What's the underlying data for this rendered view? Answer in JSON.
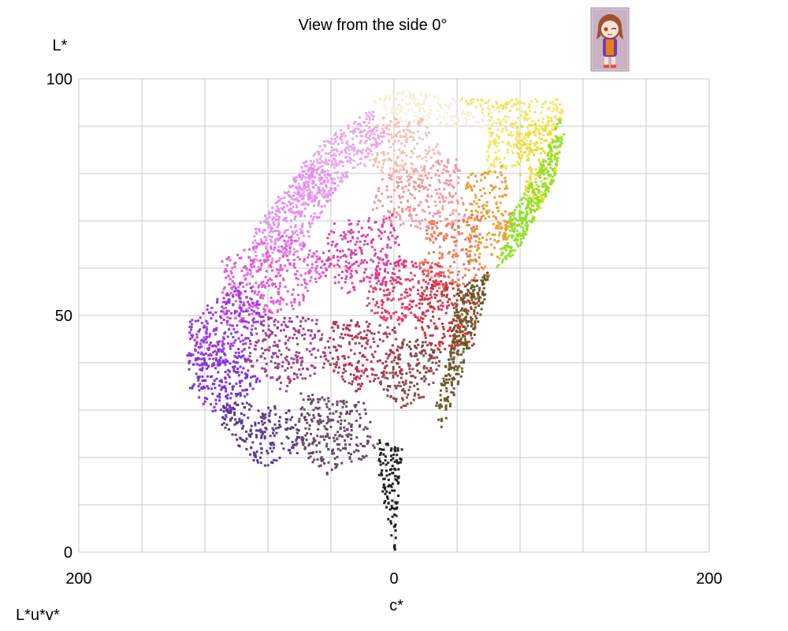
{
  "chart_data": {
    "type": "scatter",
    "title": "View from the side 0°",
    "xlabel": "c*",
    "ylabel": "L*",
    "colorspace_label": "L*u*v*",
    "xlim": [
      -200,
      200
    ],
    "ylim": [
      0,
      100
    ],
    "x_ticks": [
      {
        "value": -200,
        "label": "200"
      },
      {
        "value": 0,
        "label": "0"
      },
      {
        "value": 200,
        "label": "200"
      }
    ],
    "y_ticks": [
      {
        "value": 0,
        "label": "0"
      },
      {
        "value": 50,
        "label": "50"
      },
      {
        "value": 100,
        "label": "100"
      }
    ],
    "grid": true,
    "grid_x_step": 40,
    "grid_y_step": 10,
    "regions": [
      {
        "color": "#f4f0d8",
        "points": [
          [
            0,
            98
          ],
          [
            40,
            96
          ],
          [
            70,
            94
          ],
          [
            60,
            90
          ],
          [
            20,
            90
          ],
          [
            -10,
            92
          ],
          [
            -15,
            96
          ]
        ]
      },
      {
        "color": "#f3e66a",
        "points": [
          [
            40,
            96
          ],
          [
            105,
            96
          ],
          [
            108,
            92
          ],
          [
            80,
            82
          ],
          [
            55,
            80
          ],
          [
            60,
            92
          ]
        ]
      },
      {
        "color": "#ecdc3a",
        "points": [
          [
            75,
            90
          ],
          [
            105,
            92
          ],
          [
            102,
            80
          ],
          [
            88,
            70
          ],
          [
            80,
            78
          ]
        ]
      },
      {
        "color": "#94df2c",
        "points": [
          [
            104,
            92
          ],
          [
            108,
            90
          ],
          [
            100,
            78
          ],
          [
            78,
            64
          ],
          [
            64,
            60
          ],
          [
            70,
            70
          ],
          [
            90,
            80
          ]
        ]
      },
      {
        "color": "#f2c0b8",
        "points": [
          [
            -10,
            92
          ],
          [
            20,
            92
          ],
          [
            30,
            84
          ],
          [
            10,
            78
          ],
          [
            -20,
            82
          ]
        ]
      },
      {
        "color": "#e8a8e8",
        "points": [
          [
            -50,
            86
          ],
          [
            -15,
            94
          ],
          [
            -5,
            88
          ],
          [
            -40,
            76
          ],
          [
            -70,
            72
          ]
        ]
      },
      {
        "color": "#e58ff0",
        "points": [
          [
            -90,
            68
          ],
          [
            -55,
            84
          ],
          [
            -35,
            78
          ],
          [
            -60,
            64
          ],
          [
            -95,
            58
          ]
        ]
      },
      {
        "color": "#ef9aa0",
        "points": [
          [
            -10,
            80
          ],
          [
            40,
            84
          ],
          [
            45,
            70
          ],
          [
            10,
            68
          ],
          [
            -15,
            72
          ]
        ]
      },
      {
        "color": "#e9a13a",
        "points": [
          [
            45,
            80
          ],
          [
            70,
            82
          ],
          [
            75,
            70
          ],
          [
            60,
            58
          ],
          [
            45,
            62
          ]
        ]
      },
      {
        "color": "#eb7a5e",
        "points": [
          [
            20,
            70
          ],
          [
            55,
            72
          ],
          [
            55,
            58
          ],
          [
            30,
            55
          ],
          [
            15,
            60
          ]
        ]
      },
      {
        "color": "#e05ecf",
        "points": [
          [
            -110,
            62
          ],
          [
            -70,
            68
          ],
          [
            -40,
            62
          ],
          [
            -60,
            52
          ],
          [
            -110,
            48
          ]
        ]
      },
      {
        "color": "#d846a8",
        "points": [
          [
            -40,
            70
          ],
          [
            0,
            72
          ],
          [
            5,
            58
          ],
          [
            -30,
            55
          ],
          [
            -50,
            60
          ]
        ]
      },
      {
        "color": "#e43a6a",
        "points": [
          [
            -10,
            62
          ],
          [
            30,
            62
          ],
          [
            35,
            52
          ],
          [
            0,
            48
          ],
          [
            -20,
            52
          ]
        ]
      },
      {
        "color": "#c8363c",
        "points": [
          [
            20,
            58
          ],
          [
            55,
            56
          ],
          [
            50,
            44
          ],
          [
            25,
            42
          ],
          [
            10,
            48
          ]
        ]
      },
      {
        "color": "#9a38e0",
        "points": [
          [
            -130,
            50
          ],
          [
            -95,
            58
          ],
          [
            -80,
            50
          ],
          [
            -100,
            40
          ],
          [
            -132,
            38
          ]
        ]
      },
      {
        "color": "#7a34d8",
        "points": [
          [
            -132,
            42
          ],
          [
            -100,
            44
          ],
          [
            -85,
            36
          ],
          [
            -110,
            28
          ],
          [
            -130,
            34
          ]
        ]
      },
      {
        "color": "#a0428e",
        "points": [
          [
            -90,
            50
          ],
          [
            -50,
            50
          ],
          [
            -40,
            40
          ],
          [
            -70,
            34
          ],
          [
            -95,
            40
          ]
        ]
      },
      {
        "color": "#b03a58",
        "points": [
          [
            -40,
            50
          ],
          [
            0,
            48
          ],
          [
            5,
            38
          ],
          [
            -25,
            34
          ],
          [
            -45,
            40
          ]
        ]
      },
      {
        "color": "#8a4a4a",
        "points": [
          [
            0,
            46
          ],
          [
            30,
            44
          ],
          [
            25,
            34
          ],
          [
            0,
            30
          ],
          [
            -10,
            36
          ]
        ]
      },
      {
        "color": "#5a3a8a",
        "points": [
          [
            -110,
            32
          ],
          [
            -70,
            32
          ],
          [
            -55,
            22
          ],
          [
            -85,
            18
          ],
          [
            -110,
            26
          ]
        ]
      },
      {
        "color": "#6a4a6a",
        "points": [
          [
            -60,
            34
          ],
          [
            -20,
            32
          ],
          [
            -10,
            22
          ],
          [
            -40,
            16
          ],
          [
            -65,
            22
          ]
        ]
      },
      {
        "color": "#6a5a2a",
        "points": [
          [
            40,
            56
          ],
          [
            60,
            60
          ],
          [
            55,
            50
          ],
          [
            30,
            26
          ],
          [
            25,
            30
          ],
          [
            35,
            44
          ]
        ]
      },
      {
        "color": "#202020",
        "points": [
          [
            -10,
            24
          ],
          [
            5,
            22
          ],
          [
            2,
            12
          ],
          [
            0,
            0
          ],
          [
            -5,
            8
          ],
          [
            -12,
            14
          ]
        ]
      }
    ]
  },
  "avatar_icon": "chibi-girl-avatar-icon"
}
